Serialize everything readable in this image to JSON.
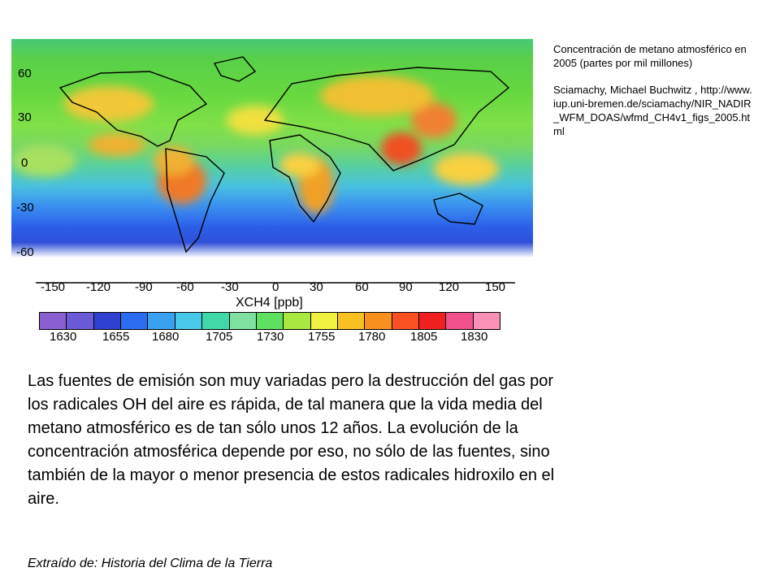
{
  "map": {
    "lat_labels": [
      "60",
      "30",
      "0",
      "-30",
      "-60"
    ],
    "lon_labels": [
      "-150",
      "-120",
      "-90",
      "-60",
      "-30",
      "0",
      "30",
      "60",
      "90",
      "120",
      "150"
    ],
    "colorbar_title": "XCH4 [ppb]",
    "colorbar_ticks": [
      "1630",
      "1655",
      "1680",
      "1705",
      "1730",
      "1755",
      "1780",
      "1805",
      "1830"
    ],
    "colorbar_colors": [
      "#8a5fd0",
      "#6a5ad8",
      "#2f3fd0",
      "#2c6cf0",
      "#3aa0f0",
      "#48c8e8",
      "#40d8a8",
      "#80e0a0",
      "#60e060",
      "#a8e840",
      "#f0f040",
      "#f8c020",
      "#f89020",
      "#f85020",
      "#f02020",
      "#f0508c",
      "#f890b8"
    ]
  },
  "caption": {
    "title": "Concentración de metano atmosférico en 2005 (partes por mil millones)",
    "credit": "Sciamachy, Michael Buchwitz , http://www.iup.uni-bremen.de/sciamachy/NIR_NADIR_WFM_DOAS/wfmd_CH4v1_figs_2005.html"
  },
  "body_text": "Las fuentes de emisión son muy variadas pero la destrucción del gas por los radicales OH del aire es rápida, de tal manera que la vida media del metano atmosférico es de tan sólo unos 12 años. La evolución de la concentración atmosférica depende por eso, no sólo de las fuentes, sino también de la mayor o menor presencia de estos radicales hidroxilo en el aire.",
  "source": "Extraído de: Historia del Clima de la Tierra"
}
